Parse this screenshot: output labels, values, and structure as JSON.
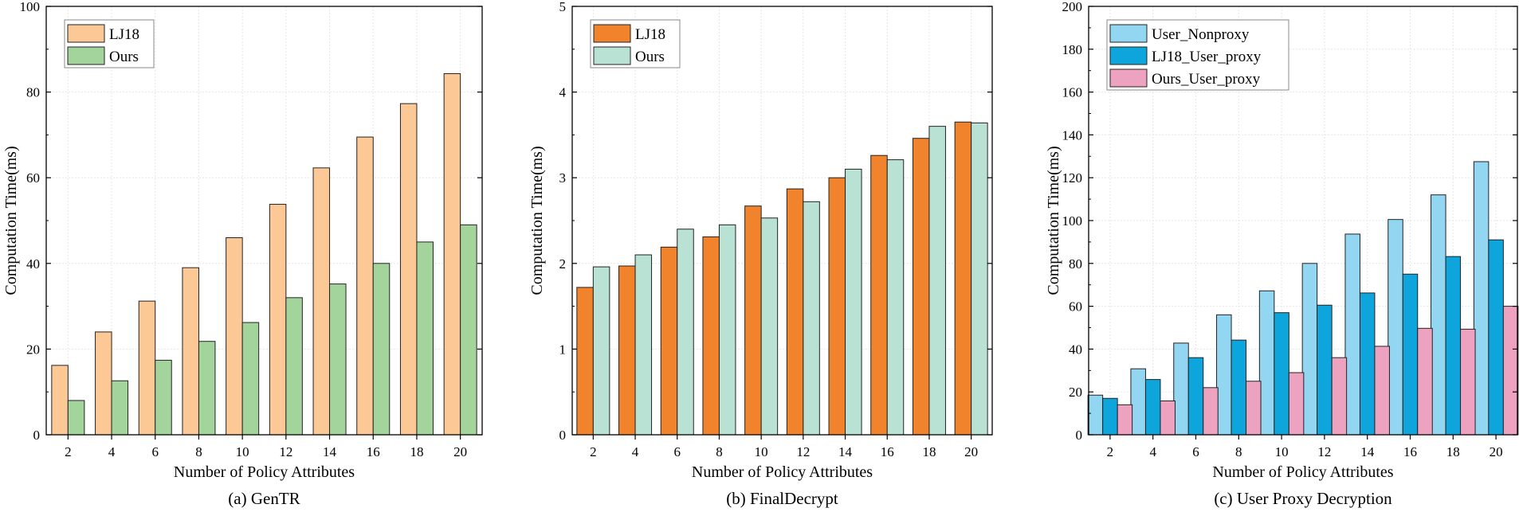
{
  "chart_data": [
    {
      "type": "bar",
      "caption": "(a) GenTR",
      "xlabel": "Number of Policy Attributes",
      "ylabel": "Computation Time(ms)",
      "categories": [
        "2",
        "4",
        "6",
        "8",
        "10",
        "12",
        "14",
        "16",
        "18",
        "20"
      ],
      "ylim": [
        0,
        100
      ],
      "yticks": [
        "0",
        "20",
        "40",
        "60",
        "80",
        "100"
      ],
      "legend_position": "top-left",
      "series": [
        {
          "name": "LJ18",
          "color": "#fcc896",
          "values": [
            16.2,
            24.0,
            31.2,
            39.0,
            46.0,
            53.8,
            62.3,
            69.5,
            77.3,
            84.3
          ]
        },
        {
          "name": "Ours",
          "color": "#a3d49c",
          "values": [
            8.0,
            12.6,
            17.4,
            21.8,
            26.2,
            32.0,
            35.2,
            40.0,
            45.0,
            49.0
          ]
        }
      ]
    },
    {
      "type": "bar",
      "caption": "(b) FinalDecrypt",
      "xlabel": "Number of Policy Attributes",
      "ylabel": "Computation Time(ms)",
      "categories": [
        "2",
        "4",
        "6",
        "8",
        "10",
        "12",
        "14",
        "16",
        "18",
        "20"
      ],
      "ylim": [
        0,
        5
      ],
      "yticks": [
        "0",
        "1",
        "2",
        "3",
        "4",
        "5"
      ],
      "legend_position": "top-left",
      "series": [
        {
          "name": "LJ18",
          "color": "#f0832c",
          "values": [
            1.72,
            1.97,
            2.19,
            2.31,
            2.67,
            2.87,
            3.0,
            3.26,
            3.46,
            3.65
          ]
        },
        {
          "name": "Ours",
          "color": "#b9e1d4",
          "values": [
            1.96,
            2.1,
            2.4,
            2.45,
            2.53,
            2.72,
            3.1,
            3.21,
            3.6,
            3.64
          ]
        }
      ]
    },
    {
      "type": "bar",
      "caption": "(c) User  Proxy Decryption",
      "xlabel": "Number of Policy Attributes",
      "ylabel": "Computation Time(ms)",
      "categories": [
        "2",
        "4",
        "6",
        "8",
        "10",
        "12",
        "14",
        "16",
        "18",
        "20"
      ],
      "ylim": [
        0,
        200
      ],
      "yticks": [
        "0",
        "20",
        "40",
        "60",
        "80",
        "100",
        "120",
        "140",
        "160",
        "180",
        "200"
      ],
      "legend_position": "top-left",
      "series": [
        {
          "name": "User_Nonproxy",
          "color": "#93d6f1",
          "values": [
            18.5,
            30.8,
            42.8,
            56.0,
            67.2,
            80.0,
            93.7,
            100.5,
            112.0,
            127.5
          ]
        },
        {
          "name": "LJ18_User_proxy",
          "color": "#0da5dc",
          "values": [
            17.0,
            25.8,
            36.0,
            44.2,
            57.0,
            60.5,
            66.2,
            75.0,
            83.2,
            91.0
          ]
        },
        {
          "name": "Ours_User_proxy",
          "color": "#eda2c0",
          "values": [
            14.0,
            15.8,
            22.0,
            25.0,
            29.0,
            36.0,
            41.3,
            49.7,
            49.3,
            60.0
          ]
        }
      ]
    }
  ]
}
